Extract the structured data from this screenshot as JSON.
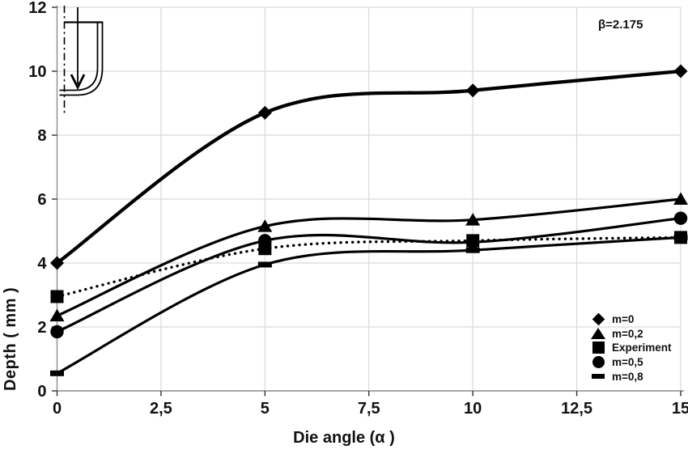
{
  "chart_data": {
    "type": "line",
    "title": "",
    "xlabel": "Die angle (α )",
    "ylabel": "Depth ( mm )",
    "annotation": "β=2.175",
    "x": [
      0,
      5,
      10,
      15
    ],
    "xlim": [
      0,
      15
    ],
    "ylim": [
      0,
      12
    ],
    "x_ticks": {
      "values": [
        0,
        2.5,
        5,
        7.5,
        10,
        12.5,
        15
      ],
      "labels": [
        "0",
        "2,5",
        "5",
        "7,5",
        "10",
        "12,5",
        "15"
      ]
    },
    "y_ticks": {
      "values": [
        0,
        2,
        4,
        6,
        8,
        10,
        12
      ],
      "labels": [
        "0",
        "2",
        "4",
        "6",
        "8",
        "10",
        "12"
      ]
    },
    "grid": true,
    "legend_position": "right-inside",
    "line_color": "#000000",
    "grid_color": "#d9d9d9",
    "axis_color": "#8c8c8c",
    "tick_color": "#333333",
    "series": [
      {
        "name": "m=0",
        "marker": "diamond",
        "line_style": "solid",
        "values": [
          4.0,
          8.7,
          9.4,
          10.0
        ]
      },
      {
        "name": "m=0,2",
        "marker": "triangle",
        "line_style": "solid",
        "values": [
          2.35,
          5.15,
          5.35,
          6.0
        ]
      },
      {
        "name": "Experiment",
        "marker": "square",
        "line_style": "dotted",
        "values": [
          2.95,
          4.45,
          4.7,
          4.8
        ]
      },
      {
        "name": "m=0,5",
        "marker": "circle",
        "line_style": "solid",
        "values": [
          1.85,
          4.7,
          4.65,
          5.4
        ]
      },
      {
        "name": "m=0,8",
        "marker": "dash",
        "line_style": "solid",
        "values": [
          0.55,
          3.95,
          4.4,
          4.8
        ]
      }
    ]
  }
}
